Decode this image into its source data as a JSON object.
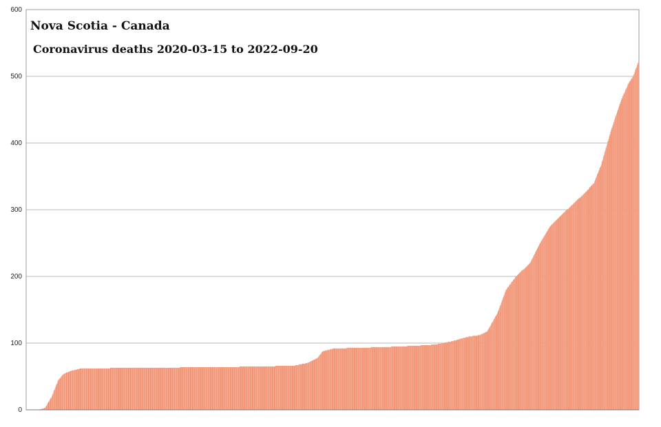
{
  "chart_data": {
    "type": "bar",
    "title": "Nova Scotia - Canada",
    "subtitle": "Coronavirus deaths 2020-03-15 to 2022-09-20",
    "xlabel": "",
    "ylabel": "",
    "ylim": [
      0,
      600
    ],
    "yticks": [
      0,
      100,
      200,
      300,
      400,
      500,
      600
    ],
    "grid": true,
    "legend": "none",
    "bar_color": "#f4a58a",
    "bar_edge_color": "#f08a68",
    "x_start": "2020-03-15",
    "x_end": "2022-09-20",
    "series": [
      {
        "keyframes": [
          [
            "2020-03-15",
            0
          ],
          [
            "2020-04-03",
            0
          ],
          [
            "2020-04-12",
            3
          ],
          [
            "2020-04-22",
            20
          ],
          [
            "2020-05-02",
            45
          ],
          [
            "2020-05-10",
            54
          ],
          [
            "2020-05-20",
            58
          ],
          [
            "2020-06-05",
            62
          ],
          [
            "2020-09-01",
            63
          ],
          [
            "2021-01-01",
            64
          ],
          [
            "2021-04-20",
            66
          ],
          [
            "2021-05-10",
            70
          ],
          [
            "2021-05-25",
            77
          ],
          [
            "2021-06-03",
            88
          ],
          [
            "2021-06-20",
            92
          ],
          [
            "2021-09-01",
            94
          ],
          [
            "2021-10-20",
            96
          ],
          [
            "2021-11-20",
            98
          ],
          [
            "2021-12-15",
            103
          ],
          [
            "2022-01-01",
            108
          ],
          [
            "2022-01-10",
            110
          ],
          [
            "2022-01-25",
            112
          ],
          [
            "2022-02-05",
            118
          ],
          [
            "2022-02-20",
            145
          ],
          [
            "2022-03-05",
            180
          ],
          [
            "2022-03-20",
            200
          ],
          [
            "2022-04-10",
            220
          ],
          [
            "2022-04-25",
            250
          ],
          [
            "2022-05-10",
            275
          ],
          [
            "2022-05-25",
            290
          ],
          [
            "2022-06-15",
            310
          ],
          [
            "2022-07-01",
            325
          ],
          [
            "2022-07-15",
            340
          ],
          [
            "2022-07-25",
            365
          ],
          [
            "2022-08-10",
            420
          ],
          [
            "2022-08-25",
            465
          ],
          [
            "2022-09-05",
            490
          ],
          [
            "2022-09-12",
            500
          ],
          [
            "2022-09-20",
            523
          ]
        ]
      }
    ]
  }
}
